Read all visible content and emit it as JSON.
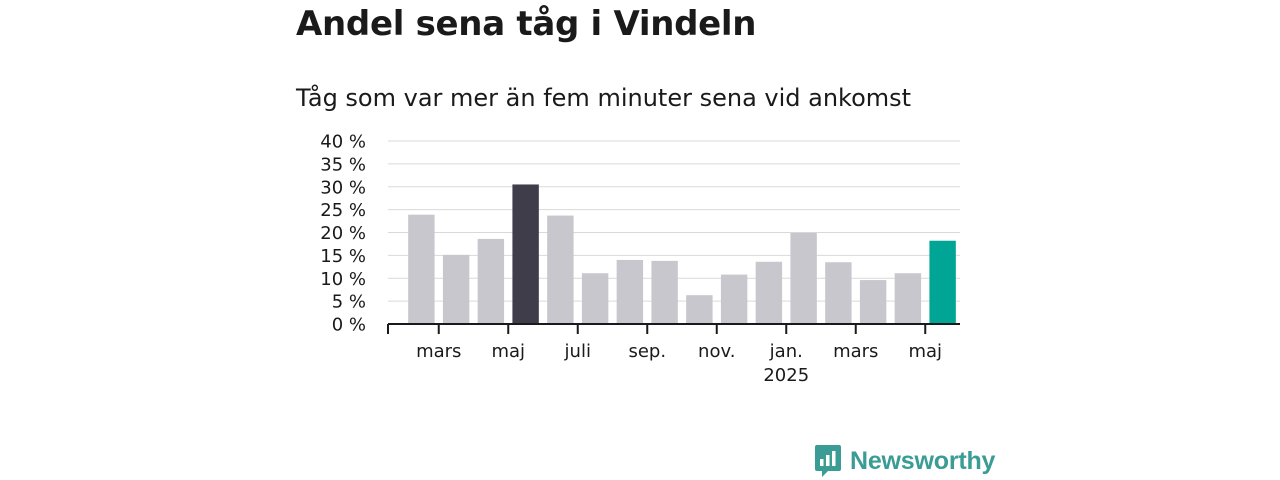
{
  "header": {
    "title": "Andel sena tåg i Vindeln",
    "subtitle": "Tåg som var mer än fem minuter sena vid ankomst"
  },
  "brand": {
    "name": "Newsworthy",
    "color": "#3a9c95",
    "icon": "newsworthy-logo-icon"
  },
  "colors": {
    "bar_default": "#c8c7ce",
    "bar_max": "#3f3d4a",
    "bar_latest": "#00a596",
    "grid": "#d9d9d9",
    "axis": "#1a1a1a"
  },
  "chart_data": {
    "type": "bar",
    "title": "Andel sena tåg i Vindeln",
    "subtitle": "Tåg som var mer än fem minuter sena vid ankomst",
    "categories": [
      "2024-02",
      "2024-03",
      "2024-04",
      "2024-05",
      "2024-06",
      "2024-07",
      "2024-08",
      "2024-09",
      "2024-10",
      "2024-11",
      "2024-12",
      "2025-01",
      "2025-02",
      "2025-03",
      "2025-04",
      "2025-05"
    ],
    "values": [
      23.9,
      15.1,
      18.6,
      30.5,
      23.7,
      11.1,
      14.0,
      13.8,
      6.3,
      10.8,
      13.6,
      19.9,
      13.5,
      9.6,
      11.1,
      18.2
    ],
    "highlight": {
      "max_index": 3,
      "latest_index": 15
    },
    "ylim": [
      0,
      40
    ],
    "yticks": [
      0,
      5,
      10,
      15,
      20,
      25,
      30,
      35,
      40
    ],
    "ytick_labels": [
      "0 %",
      "5 %",
      "10 %",
      "15 %",
      "20 %",
      "25 %",
      "30 %",
      "35 %",
      "40 %"
    ],
    "xtick_labels": [
      {
        "at": 1,
        "label": "mars"
      },
      {
        "at": 3,
        "label": "maj"
      },
      {
        "at": 5,
        "label": "juli"
      },
      {
        "at": 7,
        "label": "sep."
      },
      {
        "at": 9,
        "label": "nov."
      },
      {
        "at": 11,
        "label": "jan.",
        "label2": "2025"
      },
      {
        "at": 13,
        "label": "mars"
      },
      {
        "at": 15,
        "label": "maj"
      }
    ],
    "grid": true,
    "xlabel": "",
    "ylabel": ""
  }
}
